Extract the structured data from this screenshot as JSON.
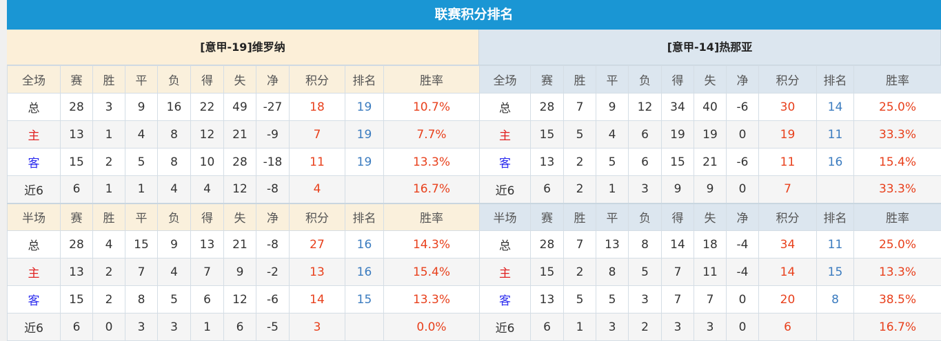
{
  "title": "联赛积分排名",
  "columns_full": [
    "全场",
    "赛",
    "胜",
    "平",
    "负",
    "得",
    "失",
    "净",
    "积分",
    "排名",
    "胜率"
  ],
  "columns_half": [
    "半场",
    "赛",
    "胜",
    "平",
    "负",
    "得",
    "失",
    "净",
    "积分",
    "排名",
    "胜率"
  ],
  "colors": {
    "title_bg": "#1a96d4",
    "points": "#e8401c",
    "rank": "#3a7bbf",
    "home": "#e02020",
    "away": "#2a2aef"
  },
  "teams": [
    {
      "name": "[意甲-19]维罗纳",
      "full": [
        [
          "总",
          "28",
          "3",
          "9",
          "16",
          "22",
          "49",
          "-27",
          "18",
          "19",
          "10.7%"
        ],
        [
          "主",
          "13",
          "1",
          "4",
          "8",
          "12",
          "21",
          "-9",
          "7",
          "19",
          "7.7%"
        ],
        [
          "客",
          "15",
          "2",
          "5",
          "8",
          "10",
          "28",
          "-18",
          "11",
          "19",
          "13.3%"
        ],
        [
          "近6",
          "6",
          "1",
          "1",
          "4",
          "4",
          "12",
          "-8",
          "4",
          "",
          "16.7%"
        ]
      ],
      "half": [
        [
          "总",
          "28",
          "4",
          "15",
          "9",
          "13",
          "21",
          "-8",
          "27",
          "16",
          "14.3%"
        ],
        [
          "主",
          "13",
          "2",
          "7",
          "4",
          "7",
          "9",
          "-2",
          "13",
          "16",
          "15.4%"
        ],
        [
          "客",
          "15",
          "2",
          "8",
          "5",
          "6",
          "12",
          "-6",
          "14",
          "15",
          "13.3%"
        ],
        [
          "近6",
          "6",
          "0",
          "3",
          "3",
          "1",
          "6",
          "-5",
          "3",
          "",
          "0.0%"
        ]
      ]
    },
    {
      "name": "[意甲-14]热那亚",
      "full": [
        [
          "总",
          "28",
          "7",
          "9",
          "12",
          "34",
          "40",
          "-6",
          "30",
          "14",
          "25.0%"
        ],
        [
          "主",
          "15",
          "5",
          "4",
          "6",
          "19",
          "19",
          "0",
          "19",
          "11",
          "33.3%"
        ],
        [
          "客",
          "13",
          "2",
          "5",
          "6",
          "15",
          "21",
          "-6",
          "11",
          "16",
          "15.4%"
        ],
        [
          "近6",
          "6",
          "2",
          "1",
          "3",
          "9",
          "9",
          "0",
          "7",
          "",
          "33.3%"
        ]
      ],
      "half": [
        [
          "总",
          "28",
          "7",
          "13",
          "8",
          "14",
          "18",
          "-4",
          "34",
          "11",
          "25.0%"
        ],
        [
          "主",
          "15",
          "2",
          "8",
          "5",
          "7",
          "11",
          "-4",
          "14",
          "15",
          "13.3%"
        ],
        [
          "客",
          "13",
          "5",
          "5",
          "3",
          "7",
          "7",
          "0",
          "20",
          "8",
          "38.5%"
        ],
        [
          "近6",
          "6",
          "1",
          "3",
          "2",
          "3",
          "3",
          "0",
          "6",
          "",
          "16.7%"
        ]
      ]
    }
  ]
}
